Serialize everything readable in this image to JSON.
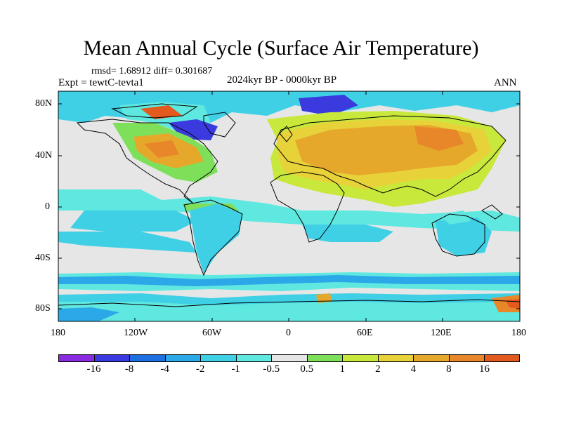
{
  "title": "Mean Annual Cycle (Surface Air Temperature)",
  "stats": "rmsd= 1.68912 diff= 0.301687",
  "experiment": "Expt = tewtC-tevta1",
  "period": "2024kyr BP - 0000kyr BP",
  "season": "ANN",
  "lat_labels": [
    "80N",
    "40N",
    "0",
    "40S",
    "80S"
  ],
  "lon_labels": [
    "180",
    "120W",
    "60W",
    "0",
    "60E",
    "120E",
    "180"
  ],
  "legend": {
    "colors": [
      "#8a2be2",
      "#3a3adf",
      "#1e6fe0",
      "#2aa8e8",
      "#40d0e6",
      "#5fe8e0",
      "#e6e6e6",
      "#7ee05a",
      "#c8e83c",
      "#e8d23a",
      "#e6a82a",
      "#e8862a",
      "#e25a1e"
    ],
    "labels": [
      "-16",
      "-8",
      "-4",
      "-2",
      "-1",
      "-0.5",
      "0.5",
      "1",
      "2",
      "4",
      "8",
      "16"
    ]
  }
}
